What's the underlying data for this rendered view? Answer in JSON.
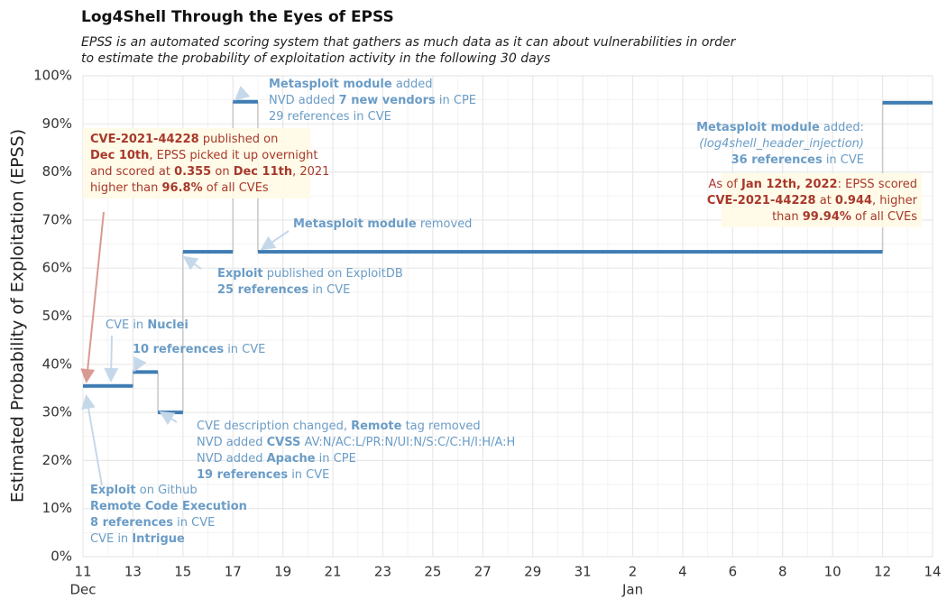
{
  "chart_data": {
    "type": "step",
    "title": "Log4Shell Through the Eyes of EPSS",
    "subtitle": [
      "EPSS is an automated scoring system that gathers as much data as it can about vulnerabilities in order",
      "to estimate the probability of exploitation activity in the following 30 days"
    ],
    "y_label": "Estimated Probability of Exploitation (EPSS)",
    "series": [
      {
        "color": "#3f7db3",
        "x_start": [
          "2021-12-11",
          "2021-12-13",
          "2021-12-14",
          "2021-12-15",
          "2021-12-17",
          "2021-12-18",
          "2022-01-12"
        ],
        "x_end": [
          "2021-12-13",
          "2021-12-14",
          "2021-12-15",
          "2021-12-17",
          "2021-12-18",
          "2022-01-12",
          "2022-01-14"
        ],
        "values": [
          35.5,
          38.4,
          30.0,
          63.4,
          94.6,
          63.4,
          94.4
        ]
      }
    ],
    "xlim": [
      "2021-12-11",
      "2022-01-14"
    ],
    "xticks": [
      {
        "value": "2021-12-11",
        "label": "11"
      },
      {
        "value": "2021-12-13",
        "label": "13"
      },
      {
        "value": "2021-12-15",
        "label": "15"
      },
      {
        "value": "2021-12-17",
        "label": "17"
      },
      {
        "value": "2021-12-19",
        "label": "19"
      },
      {
        "value": "2021-12-21",
        "label": "21"
      },
      {
        "value": "2021-12-23",
        "label": "23"
      },
      {
        "value": "2021-12-25",
        "label": "25"
      },
      {
        "value": "2021-12-27",
        "label": "27"
      },
      {
        "value": "2021-12-29",
        "label": "29"
      },
      {
        "value": "2021-12-31",
        "label": "31"
      },
      {
        "value": "2022-01-02",
        "label": "2"
      },
      {
        "value": "2022-01-04",
        "label": "4"
      },
      {
        "value": "2022-01-06",
        "label": "6"
      },
      {
        "value": "2022-01-08",
        "label": "8"
      },
      {
        "value": "2022-01-10",
        "label": "10"
      },
      {
        "value": "2022-01-12",
        "label": "12"
      },
      {
        "value": "2022-01-14",
        "label": "14"
      }
    ],
    "xtick_months": [
      {
        "value": "2021-12-11",
        "label": "Dec"
      },
      {
        "value": "2022-01-02",
        "label": "Jan"
      }
    ],
    "ylim": [
      0,
      100
    ],
    "yticks": [
      {
        "value": 0,
        "label": "0%"
      },
      {
        "value": 10,
        "label": "10%"
      },
      {
        "value": 20,
        "label": "20%"
      },
      {
        "value": 30,
        "label": "30%"
      },
      {
        "value": 40,
        "label": "40%"
      },
      {
        "value": 50,
        "label": "50%"
      },
      {
        "value": 60,
        "label": "60%"
      },
      {
        "value": 70,
        "label": "70%"
      },
      {
        "value": 80,
        "label": "80%"
      },
      {
        "value": 90,
        "label": "90%"
      },
      {
        "value": 100,
        "label": "100%"
      }
    ],
    "grid": true,
    "annotations": [
      {
        "color": "#a8382b",
        "lines": [
          [
            {
              "text": "CVE-2021-44228",
              "style": "bold"
            },
            " published on"
          ],
          [
            {
              "text": "Dec 10th",
              "style": "bold"
            },
            ", EPSS picked it up overnight"
          ],
          [
            "and scored at ",
            {
              "text": "0.355",
              "style": "bold"
            },
            " on ",
            {
              "text": "Dec 11th",
              "style": "bold"
            },
            ", 2021"
          ],
          [
            "higher than ",
            {
              "text": "96.8%",
              "style": "bold"
            },
            " of all CVEs"
          ]
        ]
      },
      {
        "color": "#a8382b",
        "lines": [
          [
            "As of ",
            {
              "text": "Jan 12th, 2022",
              "style": "bold"
            },
            ": EPSS scored"
          ],
          [
            {
              "text": "CVE-2021-44228",
              "style": "bold"
            },
            " at ",
            {
              "text": "0.944",
              "style": "bold"
            },
            ", higher"
          ],
          [
            "than ",
            {
              "text": "99.94%",
              "style": "bold"
            },
            " of all CVEs"
          ]
        ]
      },
      {
        "color": "#6a9cc6",
        "lines": [
          [
            {
              "text": "Metasploit module",
              "style": "bold"
            },
            " added"
          ],
          [
            "NVD added ",
            {
              "text": "7 new vendors",
              "style": "bold"
            },
            " in CPE"
          ],
          [
            "29 references in CVE"
          ]
        ]
      },
      {
        "color": "#6a9cc6",
        "lines": [
          [
            {
              "text": "Metasploit module",
              "style": "bold"
            },
            " added:"
          ],
          [
            {
              "text": "(log4shell_header_injection)",
              "style": "italic"
            }
          ],
          [
            {
              "text": "36 references",
              "style": "bold"
            },
            " in CVE"
          ]
        ]
      },
      {
        "color": "#6a9cc6",
        "lines": [
          [
            {
              "text": "Metasploit module",
              "style": "bold"
            },
            " removed"
          ]
        ]
      },
      {
        "color": "#6a9cc6",
        "lines": [
          [
            {
              "text": "Exploit",
              "style": "bold"
            },
            " published on ExploitDB"
          ],
          [
            {
              "text": "25 references",
              "style": "bold"
            },
            " in CVE"
          ]
        ]
      },
      {
        "color": "#6a9cc6",
        "lines": [
          [
            "CVE in ",
            {
              "text": "Nuclei",
              "style": "bold"
            }
          ]
        ]
      },
      {
        "color": "#6a9cc6",
        "lines": [
          [
            {
              "text": "10 references",
              "style": "bold"
            },
            " in CVE"
          ]
        ]
      },
      {
        "color": "#6a9cc6",
        "lines": [
          [
            "CVE description changed, ",
            {
              "text": "Remote",
              "style": "bold"
            },
            " tag removed"
          ],
          [
            "NVD added ",
            {
              "text": "CVSS",
              "style": "bold"
            },
            " AV:N/AC:L/PR:N/UI:N/S:C/C:H/I:H/A:H"
          ],
          [
            "NVD added ",
            {
              "text": "Apache",
              "style": "bold"
            },
            " in CPE"
          ],
          [
            {
              "text": "19 references",
              "style": "bold"
            },
            " in CVE"
          ]
        ]
      },
      {
        "color": "#6a9cc6",
        "lines": [
          [
            {
              "text": "Exploit",
              "style": "bold"
            },
            " on Github"
          ],
          [
            {
              "text": "Remote Code Execution",
              "style": "bold"
            }
          ],
          [
            {
              "text": "8 references",
              "style": "bold"
            },
            " in CVE"
          ],
          [
            "CVE in ",
            {
              "text": "Intrigue",
              "style": "bold"
            }
          ]
        ]
      }
    ]
  }
}
